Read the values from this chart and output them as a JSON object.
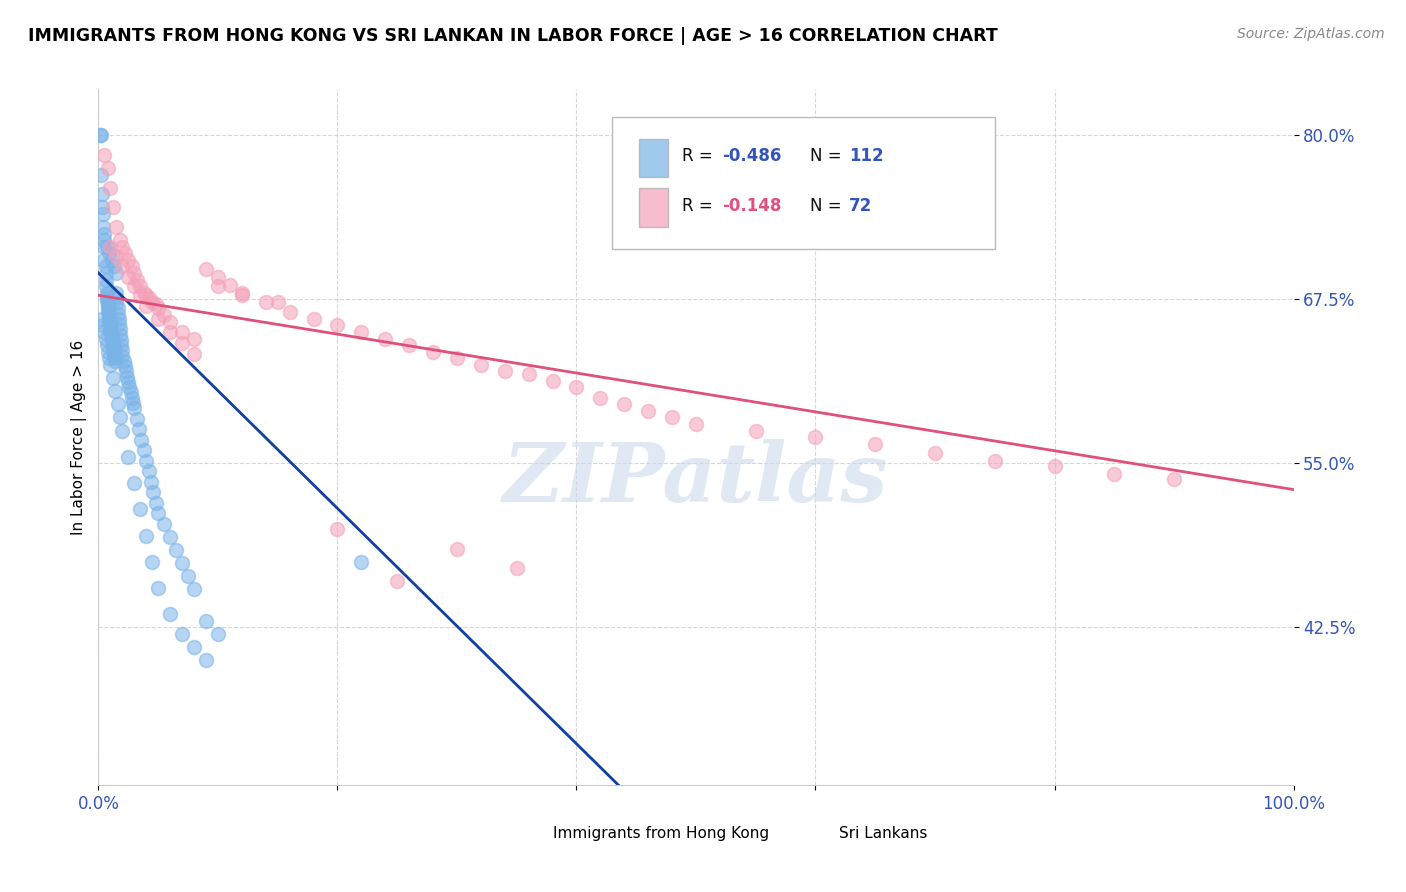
{
  "title": "IMMIGRANTS FROM HONG KONG VS SRI LANKAN IN LABOR FORCE | AGE > 16 CORRELATION CHART",
  "source": "Source: ZipAtlas.com",
  "ylabel": "In Labor Force | Age > 16",
  "xlim": [
    0.0,
    1.0
  ],
  "ylim": [
    0.305,
    0.835
  ],
  "yticks": [
    0.425,
    0.55,
    0.675,
    0.8
  ],
  "ytick_labels": [
    "42.5%",
    "55.0%",
    "67.5%",
    "80.0%"
  ],
  "xticks": [
    0.0,
    0.2,
    0.4,
    0.6,
    0.8,
    1.0
  ],
  "xtick_labels": [
    "0.0%",
    "",
    "",
    "",
    "",
    "100.0%"
  ],
  "blue_color": "#7ab3e8",
  "pink_color": "#f4a0b8",
  "blue_line_color": "#1040a0",
  "pink_line_color": "#e0507a",
  "watermark_text": "ZIPatlas",
  "blue_trend_x": [
    0.0,
    0.435
  ],
  "blue_trend_y": [
    0.695,
    0.305
  ],
  "pink_trend_x": [
    0.0,
    1.0
  ],
  "pink_trend_y": [
    0.678,
    0.53
  ],
  "blue_x": [
    0.001,
    0.002,
    0.002,
    0.003,
    0.003,
    0.004,
    0.004,
    0.005,
    0.005,
    0.005,
    0.006,
    0.006,
    0.006,
    0.006,
    0.007,
    0.007,
    0.007,
    0.007,
    0.008,
    0.008,
    0.008,
    0.008,
    0.009,
    0.009,
    0.009,
    0.009,
    0.01,
    0.01,
    0.01,
    0.01,
    0.011,
    0.011,
    0.011,
    0.012,
    0.012,
    0.012,
    0.013,
    0.013,
    0.013,
    0.014,
    0.014,
    0.015,
    0.015,
    0.015,
    0.016,
    0.016,
    0.017,
    0.017,
    0.018,
    0.018,
    0.019,
    0.019,
    0.02,
    0.02,
    0.021,
    0.022,
    0.023,
    0.024,
    0.025,
    0.026,
    0.027,
    0.028,
    0.029,
    0.03,
    0.032,
    0.034,
    0.036,
    0.038,
    0.04,
    0.042,
    0.044,
    0.046,
    0.048,
    0.05,
    0.055,
    0.06,
    0.065,
    0.07,
    0.075,
    0.08,
    0.09,
    0.1,
    0.003,
    0.004,
    0.005,
    0.006,
    0.007,
    0.008,
    0.009,
    0.01,
    0.012,
    0.014,
    0.016,
    0.018,
    0.02,
    0.025,
    0.03,
    0.035,
    0.04,
    0.045,
    0.05,
    0.06,
    0.07,
    0.08,
    0.09,
    0.22,
    0.005,
    0.007,
    0.009,
    0.011,
    0.013,
    0.015
  ],
  "blue_y": [
    0.8,
    0.8,
    0.77,
    0.755,
    0.745,
    0.74,
    0.73,
    0.725,
    0.715,
    0.705,
    0.7,
    0.695,
    0.69,
    0.685,
    0.68,
    0.678,
    0.676,
    0.674,
    0.672,
    0.67,
    0.668,
    0.666,
    0.664,
    0.662,
    0.66,
    0.658,
    0.656,
    0.654,
    0.652,
    0.65,
    0.648,
    0.646,
    0.644,
    0.642,
    0.64,
    0.638,
    0.636,
    0.634,
    0.632,
    0.63,
    0.628,
    0.68,
    0.676,
    0.672,
    0.668,
    0.664,
    0.66,
    0.656,
    0.652,
    0.648,
    0.644,
    0.64,
    0.636,
    0.632,
    0.628,
    0.624,
    0.62,
    0.616,
    0.612,
    0.608,
    0.604,
    0.6,
    0.596,
    0.592,
    0.584,
    0.576,
    0.568,
    0.56,
    0.552,
    0.544,
    0.536,
    0.528,
    0.52,
    0.512,
    0.504,
    0.494,
    0.484,
    0.474,
    0.464,
    0.454,
    0.43,
    0.42,
    0.66,
    0.655,
    0.65,
    0.645,
    0.64,
    0.635,
    0.63,
    0.625,
    0.615,
    0.605,
    0.595,
    0.585,
    0.575,
    0.555,
    0.535,
    0.515,
    0.495,
    0.475,
    0.455,
    0.435,
    0.42,
    0.41,
    0.4,
    0.475,
    0.72,
    0.715,
    0.71,
    0.705,
    0.7,
    0.695
  ],
  "pink_x": [
    0.005,
    0.008,
    0.01,
    0.012,
    0.015,
    0.018,
    0.02,
    0.022,
    0.025,
    0.028,
    0.03,
    0.032,
    0.035,
    0.038,
    0.04,
    0.042,
    0.045,
    0.048,
    0.05,
    0.055,
    0.06,
    0.07,
    0.08,
    0.09,
    0.1,
    0.11,
    0.12,
    0.14,
    0.16,
    0.18,
    0.2,
    0.22,
    0.24,
    0.26,
    0.28,
    0.3,
    0.32,
    0.34,
    0.36,
    0.38,
    0.4,
    0.42,
    0.44,
    0.46,
    0.48,
    0.5,
    0.55,
    0.6,
    0.65,
    0.7,
    0.75,
    0.8,
    0.85,
    0.9,
    0.01,
    0.015,
    0.02,
    0.025,
    0.03,
    0.035,
    0.04,
    0.05,
    0.06,
    0.07,
    0.08,
    0.1,
    0.12,
    0.15,
    0.2,
    0.25,
    0.3,
    0.35
  ],
  "pink_y": [
    0.785,
    0.775,
    0.76,
    0.745,
    0.73,
    0.72,
    0.715,
    0.71,
    0.705,
    0.7,
    0.695,
    0.69,
    0.685,
    0.68,
    0.678,
    0.676,
    0.673,
    0.671,
    0.668,
    0.663,
    0.658,
    0.65,
    0.645,
    0.698,
    0.692,
    0.686,
    0.68,
    0.673,
    0.665,
    0.66,
    0.655,
    0.65,
    0.645,
    0.64,
    0.635,
    0.63,
    0.625,
    0.62,
    0.618,
    0.613,
    0.608,
    0.6,
    0.595,
    0.59,
    0.585,
    0.58,
    0.575,
    0.57,
    0.565,
    0.558,
    0.552,
    0.548,
    0.542,
    0.538,
    0.715,
    0.708,
    0.7,
    0.692,
    0.685,
    0.678,
    0.67,
    0.66,
    0.65,
    0.642,
    0.633,
    0.685,
    0.678,
    0.673,
    0.5,
    0.46,
    0.485,
    0.47
  ]
}
